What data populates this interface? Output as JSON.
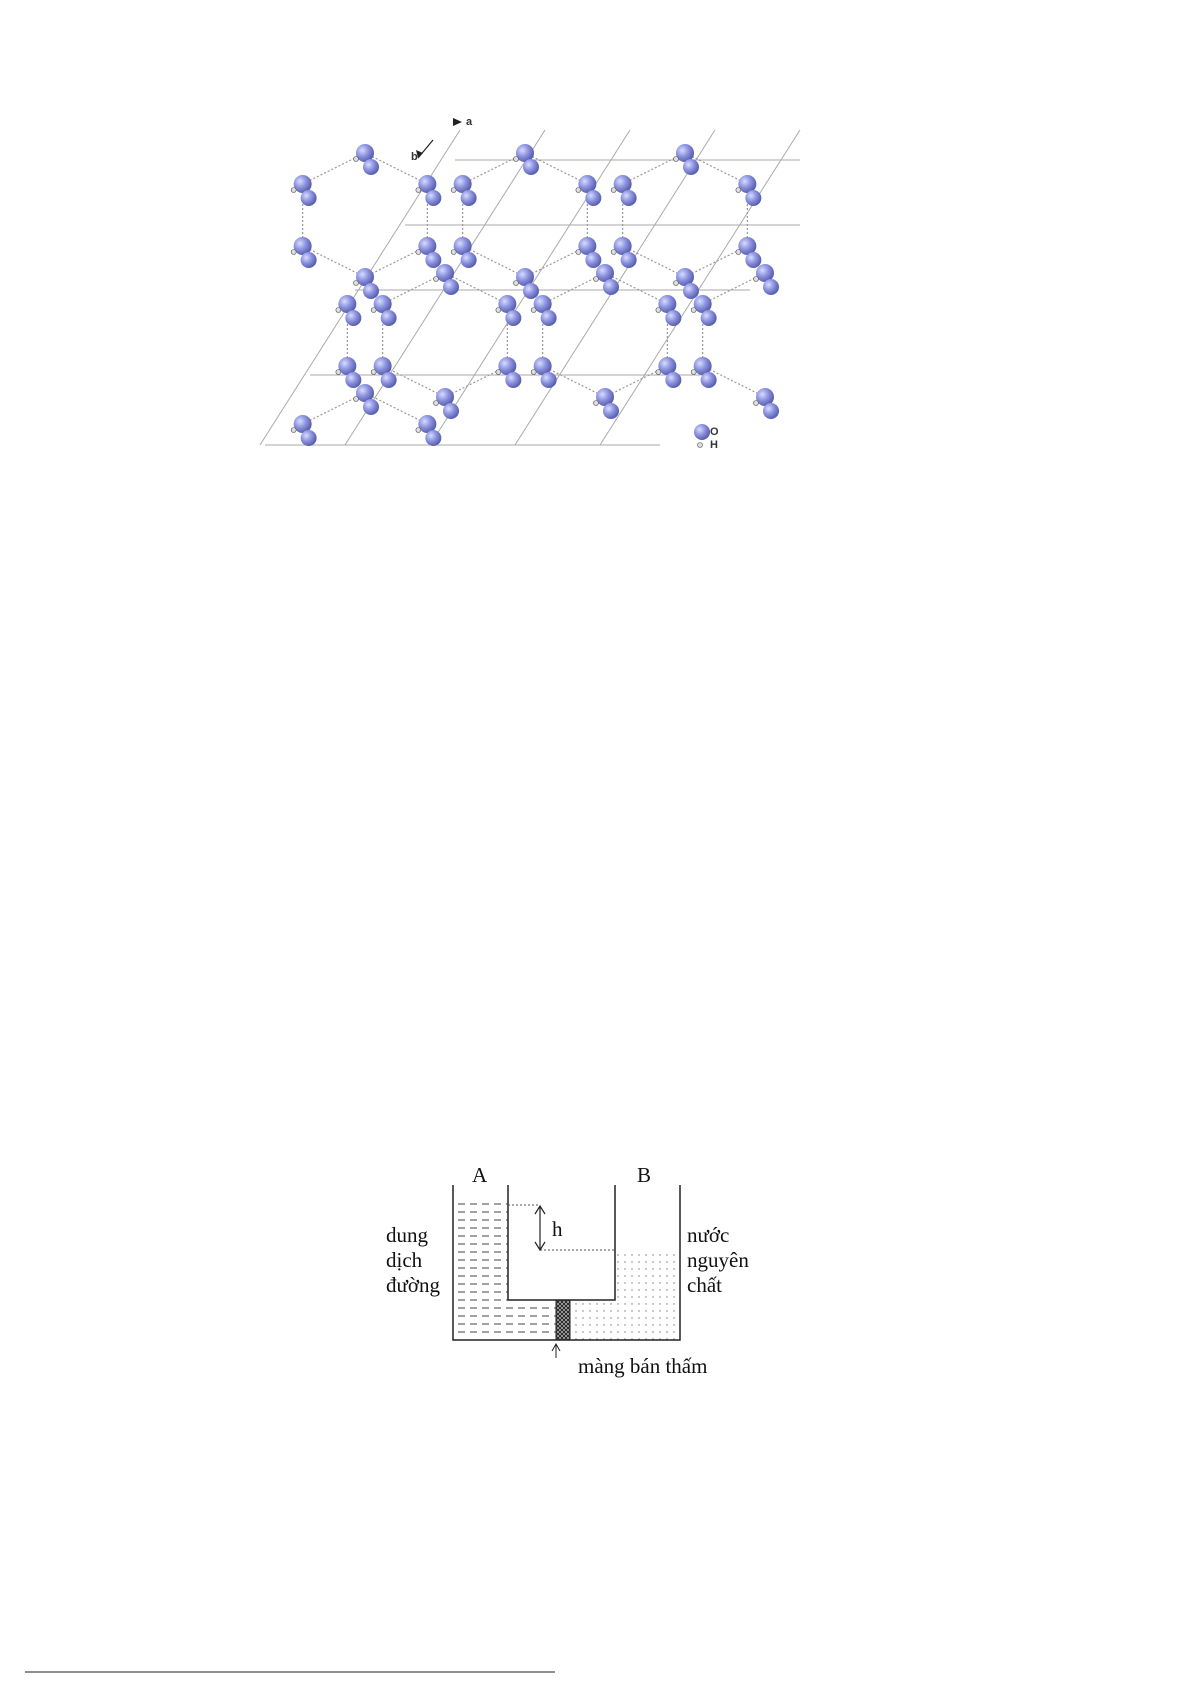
{
  "figure1": {
    "axis_labels": {
      "a": "a",
      "b": "b"
    },
    "legend": [
      "O",
      "H"
    ]
  },
  "figure2": {
    "tube_labels": [
      "A",
      "B"
    ],
    "height_label": "h",
    "left_label": [
      "dung",
      "dịch",
      "đường"
    ],
    "right_label": [
      "nước",
      "nguyên",
      "chất"
    ],
    "membrane_label": "màng bán thấm"
  }
}
